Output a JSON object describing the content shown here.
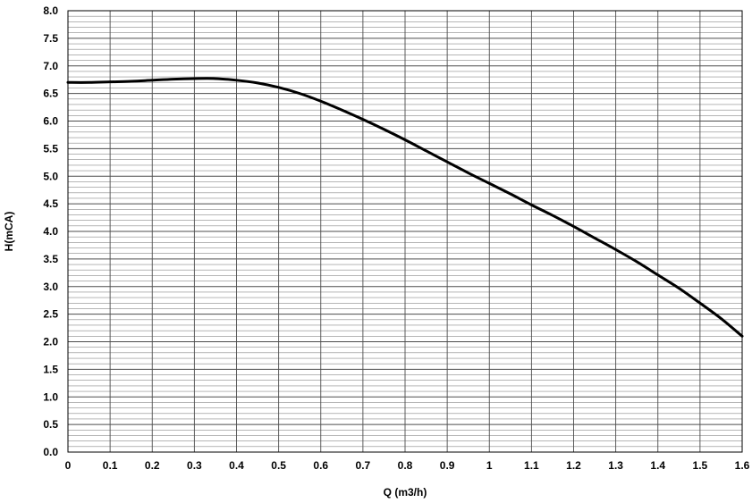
{
  "chart_data": {
    "type": "line",
    "title": "",
    "xlabel": "Q (m3/h)",
    "ylabel": "H(mCA)",
    "xlim": [
      0,
      1.6
    ],
    "ylim": [
      0,
      8.0
    ],
    "x_ticks": [
      "0",
      "0.1",
      "0.2",
      "0.3",
      "0.4",
      "0.5",
      "0.6",
      "0.7",
      "0.8",
      "0.9",
      "1",
      "1.1",
      "1.2",
      "1.3",
      "1.4",
      "1.5",
      "1.6"
    ],
    "x_tick_values": [
      0,
      0.1,
      0.2,
      0.3,
      0.4,
      0.5,
      0.6,
      0.7,
      0.8,
      0.9,
      1.0,
      1.1,
      1.2,
      1.3,
      1.4,
      1.5,
      1.6
    ],
    "y_ticks": [
      "0.0",
      "0.5",
      "1.0",
      "1.5",
      "2.0",
      "2.5",
      "3.0",
      "3.5",
      "4.0",
      "4.5",
      "5.0",
      "5.5",
      "6.0",
      "6.5",
      "7.0",
      "7.5",
      "8.0"
    ],
    "y_tick_values": [
      0,
      0.5,
      1.0,
      1.5,
      2.0,
      2.5,
      3.0,
      3.5,
      4.0,
      4.5,
      5.0,
      5.5,
      6.0,
      6.5,
      7.0,
      7.5,
      8.0
    ],
    "minor_y_step": 0.1,
    "grid": true,
    "legend": "none",
    "series": [
      {
        "x": [
          0,
          0.05,
          0.1,
          0.15,
          0.2,
          0.25,
          0.3,
          0.35,
          0.4,
          0.45,
          0.5,
          0.55,
          0.6,
          0.65,
          0.7,
          0.75,
          0.8,
          0.85,
          0.9,
          0.95,
          1.0,
          1.05,
          1.1,
          1.15,
          1.2,
          1.25,
          1.3,
          1.35,
          1.4,
          1.45,
          1.5,
          1.55,
          1.6
        ],
        "y": [
          6.7,
          6.7,
          6.71,
          6.72,
          6.74,
          6.76,
          6.77,
          6.77,
          6.74,
          6.69,
          6.61,
          6.5,
          6.36,
          6.2,
          6.03,
          5.85,
          5.66,
          5.46,
          5.26,
          5.06,
          4.87,
          4.68,
          4.48,
          4.29,
          4.09,
          3.88,
          3.67,
          3.45,
          3.21,
          2.97,
          2.7,
          2.42,
          2.1
        ],
        "color": "#000000"
      }
    ]
  }
}
